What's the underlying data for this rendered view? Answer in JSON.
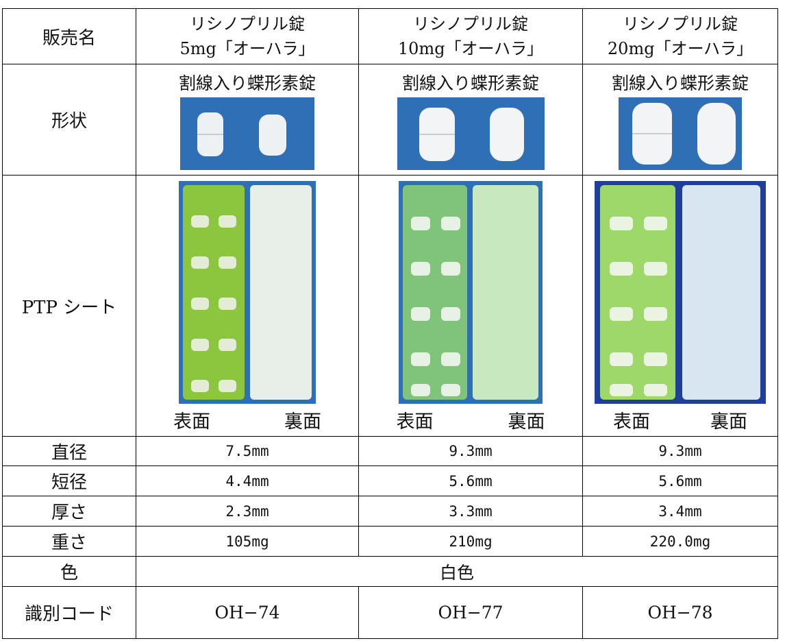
{
  "table": {
    "row_labels": {
      "name": "販売名",
      "shape": "形状",
      "ptp": "PTP シート",
      "diameter": "直径",
      "minor": "短径",
      "thickness": "厚さ",
      "weight": "重さ",
      "color": "色",
      "code": "識別コード"
    },
    "color_value": "白色",
    "products": [
      {
        "name": [
          "リシノプリル錠",
          "5mg「オーハラ」"
        ],
        "shape": "割線入り蝶形素錠",
        "ptp_sides": [
          "表面",
          "裏面"
        ],
        "diameter": "7.5mm",
        "minor": "4.4mm",
        "thickness": "2.3mm",
        "weight": "105mg",
        "code": "OH−74"
      },
      {
        "name": [
          "リシノプリル錠",
          "10mg「オーハラ」"
        ],
        "shape": "割線入り蝶形素錠",
        "ptp_sides": [
          "表面",
          "裏面"
        ],
        "diameter": "9.3mm",
        "minor": "5.6mm",
        "thickness": "3.3mm",
        "weight": "210mg",
        "code": "OH−77"
      },
      {
        "name": [
          "リシノプリル錠",
          "20mg「オーハラ」"
        ],
        "shape": "割線入り蝶形素錠",
        "ptp_sides": [
          "表面",
          "裏面"
        ],
        "diameter": "9.3mm",
        "minor": "5.6mm",
        "thickness": "3.4mm",
        "weight": "220.0mg",
        "code": "OH−78"
      }
    ]
  }
}
